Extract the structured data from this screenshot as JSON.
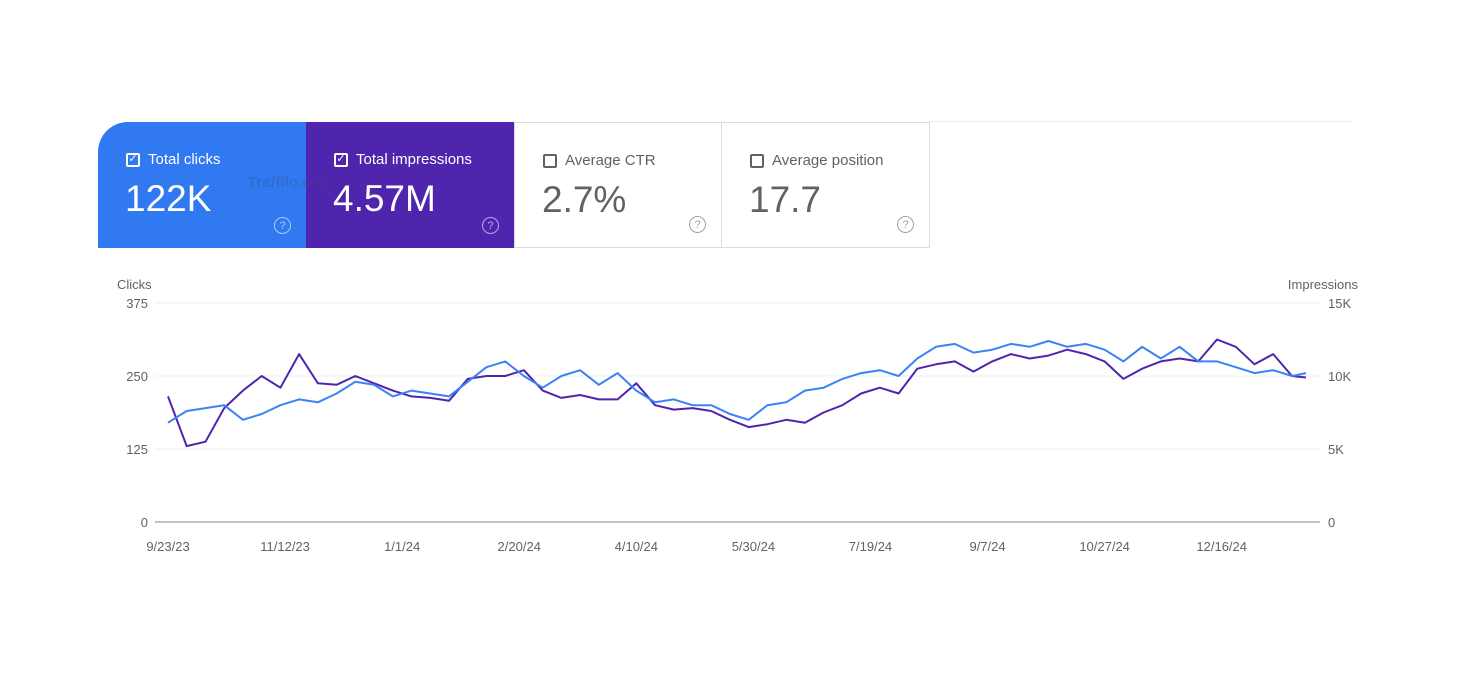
{
  "watermark": "Traffilo.com",
  "cards": [
    {
      "label": "Total clicks",
      "value": "122K",
      "checked": true,
      "color": "#3079f0"
    },
    {
      "label": "Total impressions",
      "value": "4.57M",
      "checked": true,
      "color": "#5025ae"
    },
    {
      "label": "Average CTR",
      "value": "2.7%",
      "checked": false
    },
    {
      "label": "Average position",
      "value": "17.7",
      "checked": false
    }
  ],
  "help_glyph": "?",
  "check_glyph": "✓",
  "chart_data": {
    "type": "line",
    "ylabel_left": "Clicks",
    "ylabel_right": "Impressions",
    "left_ticks": [
      "0",
      "125",
      "250",
      "375"
    ],
    "left_tick_values": [
      0,
      125,
      250,
      375
    ],
    "right_ticks": [
      "0",
      "5K",
      "10K",
      "15K"
    ],
    "right_tick_values": [
      0,
      5000,
      10000,
      15000
    ],
    "ylim_left": [
      0,
      375
    ],
    "ylim_right": [
      0,
      15000
    ],
    "x_tick_labels": [
      "9/23/23",
      "11/12/23",
      "1/1/24",
      "2/20/24",
      "4/10/24",
      "5/30/24",
      "7/19/24",
      "9/7/24",
      "10/27/24",
      "12/16/24"
    ],
    "x_tick_days": [
      0,
      50,
      100,
      150,
      200,
      250,
      300,
      350,
      400,
      450
    ],
    "x_range_days": [
      0,
      486
    ],
    "grid": true,
    "x_days": [
      0,
      8,
      16,
      24,
      32,
      40,
      48,
      56,
      64,
      72,
      80,
      88,
      96,
      104,
      112,
      120,
      128,
      136,
      144,
      152,
      160,
      168,
      176,
      184,
      192,
      200,
      208,
      216,
      224,
      232,
      240,
      248,
      256,
      264,
      272,
      280,
      288,
      296,
      304,
      312,
      320,
      328,
      336,
      344,
      352,
      360,
      368,
      376,
      384,
      392,
      400,
      408,
      416,
      424,
      432,
      440,
      448,
      456,
      464,
      472,
      480,
      486
    ],
    "series": [
      {
        "name": "Clicks",
        "axis": "left",
        "color": "#3b82f6",
        "values": [
          170,
          190,
          195,
          200,
          175,
          185,
          200,
          210,
          205,
          220,
          240,
          235,
          215,
          225,
          220,
          215,
          240,
          265,
          275,
          250,
          230,
          250,
          260,
          235,
          255,
          225,
          205,
          210,
          200,
          200,
          185,
          175,
          200,
          205,
          225,
          230,
          245,
          255,
          260,
          250,
          280,
          300,
          305,
          290,
          295,
          305,
          300,
          310,
          300,
          305,
          295,
          275,
          300,
          280,
          300,
          275,
          275,
          265,
          255,
          260,
          250,
          255
        ]
      },
      {
        "name": "Impressions",
        "axis": "right",
        "color": "#5025ae",
        "values": [
          8600,
          5200,
          5500,
          7800,
          9000,
          10000,
          9200,
          11500,
          9500,
          9400,
          10000,
          9500,
          9000,
          8600,
          8500,
          8300,
          9800,
          10000,
          10000,
          10400,
          9000,
          8500,
          8700,
          8400,
          8400,
          9500,
          8000,
          7700,
          7800,
          7600,
          7000,
          6500,
          6700,
          7000,
          6800,
          7500,
          8000,
          8800,
          9200,
          8800,
          10500,
          10800,
          11000,
          10300,
          11000,
          11500,
          11200,
          11400,
          11800,
          11500,
          11000,
          9800,
          10500,
          11000,
          11200,
          11000,
          12500,
          12000,
          10800,
          11500,
          10000,
          9900
        ]
      }
    ]
  }
}
